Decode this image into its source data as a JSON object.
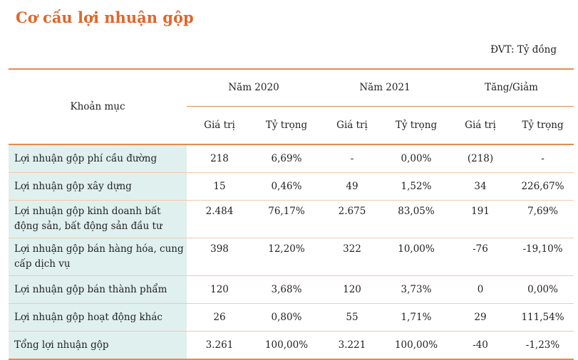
{
  "title": "Cơ cấu lợi nhuận gộp",
  "unit": "ĐVT: Tỷ đồng",
  "header": {
    "item": "Khoản mục",
    "groups": [
      "Năm 2020",
      "Năm 2021",
      "Tăng/Giảm"
    ],
    "sub": [
      "Giá trị",
      "Tỷ trọng",
      "Giá trị",
      "Tỷ trọng",
      "Giá trị",
      "Tỷ trọng"
    ]
  },
  "rows": [
    {
      "label": "Lợi nhuận gộp phí cầu đường",
      "cells": [
        "218",
        "6,69%",
        "-",
        "0,00%",
        "(218)",
        "-"
      ]
    },
    {
      "label": "Lợi nhuận gộp xây dựng",
      "cells": [
        "15",
        "0,46%",
        "49",
        "1,52%",
        "34",
        "226,67%"
      ]
    },
    {
      "label": "Lợi nhuận gộp kinh doanh bất động sản, bất động sản đầu tư",
      "cells": [
        "2.484",
        "76,17%",
        "2.675",
        "83,05%",
        "191",
        "7,69%"
      ]
    },
    {
      "label": "Lợi nhuận gộp bán hàng hóa, cung cấp dịch vụ",
      "cells": [
        "398",
        "12,20%",
        "322",
        "10,00%",
        "-76",
        "-19,10%"
      ]
    },
    {
      "label": "Lợi nhuận gộp bán thành phẩm",
      "cells": [
        "120",
        "3,68%",
        "120",
        "3,73%",
        "0",
        "0,00%"
      ]
    },
    {
      "label": "Lợi nhuận gộp hoạt động khác",
      "cells": [
        "26",
        "0,80%",
        "55",
        "1,71%",
        "29",
        "111,54%"
      ]
    },
    {
      "label": "Tổng lợi nhuận gộp",
      "cells": [
        "3.261",
        "100,00%",
        "3.221",
        "100,00%",
        "-40",
        "-1,23%"
      ]
    }
  ]
}
